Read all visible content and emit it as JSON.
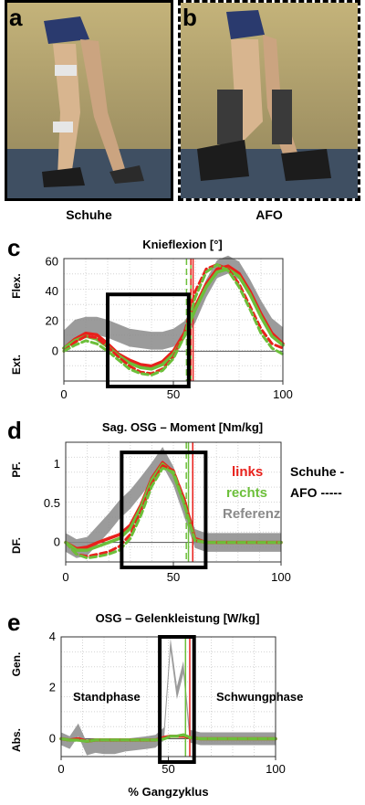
{
  "photos": [
    {
      "letter": "a",
      "caption": "Schuhe"
    },
    {
      "letter": "b",
      "caption": "AFO"
    }
  ],
  "colors": {
    "links": "#e8211c",
    "rechts": "#6cbf3a",
    "referenz": "#8a8a8a",
    "box": "#000000"
  },
  "legend": {
    "links": "links",
    "rechts": "rechts",
    "referenz": "Referenz",
    "schuhe": "Schuhe -",
    "afo": "AFO -----"
  },
  "chart_data": [
    {
      "panel": "c",
      "type": "line",
      "title": "Knieflexion [°]",
      "ylabel_top": "Flex.",
      "ylabel_bottom": "Ext.",
      "xlim": [
        0,
        100
      ],
      "ylim": [
        -20,
        62
      ],
      "xticks": [
        "0",
        "50",
        "100"
      ],
      "yticks": [
        "0",
        "20",
        "40",
        "60"
      ],
      "grid": true,
      "x": [
        0,
        5,
        10,
        15,
        20,
        25,
        30,
        35,
        40,
        45,
        50,
        55,
        60,
        65,
        70,
        75,
        80,
        85,
        90,
        95,
        100
      ],
      "series": [
        {
          "key": "ref",
          "values": [
            8,
            15,
            17,
            17,
            15,
            12,
            9,
            8,
            7,
            7,
            9,
            14,
            25,
            42,
            55,
            58,
            54,
            42,
            28,
            16,
            10
          ],
          "band": 6
        },
        {
          "key": "links_schuhe",
          "values": [
            2,
            8,
            12,
            11,
            5,
            -2,
            -6,
            -9,
            -10,
            -7,
            0,
            12,
            30,
            45,
            55,
            57,
            52,
            40,
            25,
            12,
            5
          ]
        },
        {
          "key": "rechts_schuhe",
          "values": [
            2,
            7,
            10,
            8,
            3,
            -3,
            -8,
            -11,
            -12,
            -9,
            -2,
            10,
            28,
            43,
            53,
            55,
            50,
            38,
            23,
            10,
            4
          ]
        },
        {
          "key": "links_afo",
          "values": [
            0,
            6,
            10,
            9,
            3,
            -4,
            -10,
            -14,
            -15,
            -12,
            -4,
            12,
            40,
            55,
            58,
            55,
            45,
            30,
            15,
            5,
            2
          ]
        },
        {
          "key": "rechts_afo",
          "values": [
            0,
            4,
            7,
            5,
            0,
            -6,
            -12,
            -15,
            -16,
            -13,
            -5,
            10,
            36,
            53,
            58,
            54,
            43,
            28,
            12,
            2,
            -2
          ]
        }
      ],
      "vlines": [
        {
          "key": "links_schuhe",
          "x": 59
        },
        {
          "key": "rechts_schuhe",
          "x": 58
        },
        {
          "key": "links_afo",
          "x": 58
        },
        {
          "key": "rechts_afo",
          "x": 56
        }
      ],
      "box": {
        "x0": 20,
        "x1": 57,
        "y0": -20,
        "y1": 38
      }
    },
    {
      "panel": "d",
      "type": "line",
      "title": "Sag. OSG – Moment [Nm/kg]",
      "ylabel_top": "PF.",
      "ylabel_bottom": "DF.",
      "xlim": [
        0,
        100
      ],
      "ylim": [
        -0.25,
        1.28
      ],
      "xticks": [
        "0",
        "50",
        "100"
      ],
      "yticks": [
        "0",
        "0.5",
        "1"
      ],
      "grid": true,
      "x": [
        0,
        5,
        10,
        15,
        20,
        25,
        30,
        35,
        40,
        45,
        50,
        55,
        60,
        65,
        70,
        75,
        80,
        85,
        90,
        95,
        100
      ],
      "series": [
        {
          "key": "ref",
          "values": [
            0.0,
            -0.08,
            -0.05,
            0.1,
            0.25,
            0.42,
            0.55,
            0.72,
            0.9,
            1.1,
            0.85,
            0.45,
            0.05,
            0.0,
            0.0,
            0.0,
            0.0,
            0.0,
            0.0,
            0.0,
            0.0
          ],
          "band": 0.12
        },
        {
          "key": "links_schuhe",
          "values": [
            0.0,
            -0.08,
            -0.06,
            0.0,
            0.05,
            0.1,
            0.22,
            0.48,
            0.82,
            1.02,
            0.9,
            0.55,
            0.05,
            0.0,
            0.0,
            0.0,
            0.0,
            0.0,
            0.0,
            0.0,
            0.0
          ]
        },
        {
          "key": "rechts_schuhe",
          "values": [
            0.0,
            -0.1,
            -0.1,
            -0.05,
            0.0,
            0.05,
            0.18,
            0.45,
            0.8,
            1.0,
            0.88,
            0.5,
            0.03,
            0.0,
            0.0,
            0.0,
            0.0,
            0.0,
            0.0,
            0.0,
            0.0
          ]
        },
        {
          "key": "links_afo",
          "values": [
            0.0,
            -0.15,
            -0.18,
            -0.15,
            -0.12,
            -0.05,
            0.1,
            0.4,
            0.75,
            0.98,
            0.92,
            0.55,
            0.02,
            0.0,
            0.0,
            0.0,
            0.0,
            0.0,
            0.0,
            0.0,
            0.0
          ]
        },
        {
          "key": "rechts_afo",
          "values": [
            0.0,
            -0.15,
            -0.2,
            -0.18,
            -0.15,
            -0.1,
            0.05,
            0.35,
            0.72,
            0.95,
            0.9,
            0.5,
            0.02,
            0.0,
            0.0,
            0.0,
            0.0,
            0.0,
            0.0,
            0.0,
            0.0
          ]
        }
      ],
      "vlines": [
        {
          "key": "links_schuhe",
          "x": 59
        },
        {
          "key": "rechts_schuhe",
          "x": 57
        },
        {
          "key": "links_afo",
          "x": 59
        },
        {
          "key": "rechts_afo",
          "x": 56
        }
      ],
      "box": {
        "x0": 26,
        "x1": 65,
        "y0": -0.25,
        "y1": 1.15
      }
    },
    {
      "panel": "e",
      "type": "line",
      "title": "OSG – Gelenkleistung [W/kg]",
      "ylabel_top": "Gen.",
      "ylabel_bottom": "Abs.",
      "xlabel": "% Gangzyklus",
      "xlim": [
        0,
        100
      ],
      "ylim": [
        -0.7,
        4.0
      ],
      "xticks": [
        "0",
        "50",
        "100"
      ],
      "yticks": [
        "0",
        "2",
        "4"
      ],
      "grid": true,
      "annotations": [
        "Standphase",
        "Schwungphase"
      ],
      "x": [
        0,
        4,
        8,
        12,
        16,
        20,
        25,
        30,
        35,
        40,
        44,
        48,
        51,
        54,
        57,
        60,
        65,
        70,
        80,
        90,
        100
      ],
      "series": [
        {
          "key": "ref",
          "values": [
            0.0,
            -0.15,
            0.35,
            -0.4,
            -0.3,
            -0.35,
            -0.35,
            -0.25,
            -0.2,
            -0.15,
            -0.1,
            0.2,
            3.7,
            1.8,
            2.8,
            0.1,
            0.0,
            0.0,
            0.0,
            0.0,
            0.0
          ],
          "band": 0.25
        },
        {
          "key": "links_schuhe",
          "values": [
            0.0,
            -0.05,
            0.0,
            -0.1,
            -0.05,
            -0.05,
            -0.05,
            -0.05,
            -0.05,
            -0.05,
            -0.05,
            0.05,
            0.1,
            0.1,
            0.1,
            0.05,
            0.0,
            0.0,
            0.0,
            0.0,
            0.0
          ]
        },
        {
          "key": "rechts_schuhe",
          "values": [
            0.0,
            -0.05,
            -0.05,
            -0.1,
            -0.05,
            -0.05,
            -0.05,
            -0.05,
            -0.05,
            -0.05,
            -0.05,
            0.0,
            0.1,
            0.1,
            0.15,
            0.05,
            0.0,
            0.0,
            0.0,
            0.0,
            0.0
          ]
        },
        {
          "key": "links_afo",
          "values": [
            0.0,
            -0.05,
            0.0,
            -0.1,
            -0.05,
            -0.05,
            -0.05,
            -0.05,
            -0.05,
            -0.05,
            -0.05,
            0.05,
            0.1,
            0.1,
            0.1,
            0.05,
            0.0,
            0.0,
            0.0,
            0.0,
            0.0
          ]
        },
        {
          "key": "rechts_afo",
          "values": [
            0.0,
            -0.05,
            -0.05,
            -0.1,
            -0.05,
            -0.05,
            -0.05,
            -0.05,
            -0.05,
            -0.05,
            -0.05,
            0.0,
            0.1,
            0.1,
            0.15,
            0.05,
            0.0,
            0.0,
            0.0,
            0.0,
            0.0
          ]
        }
      ],
      "vlines": [
        {
          "key": "links_schuhe",
          "x": 60
        },
        {
          "key": "rechts_schuhe",
          "x": 58
        }
      ],
      "box": {
        "x0": 46,
        "x1": 62,
        "y0": -0.7,
        "y1": 4.0
      }
    }
  ]
}
